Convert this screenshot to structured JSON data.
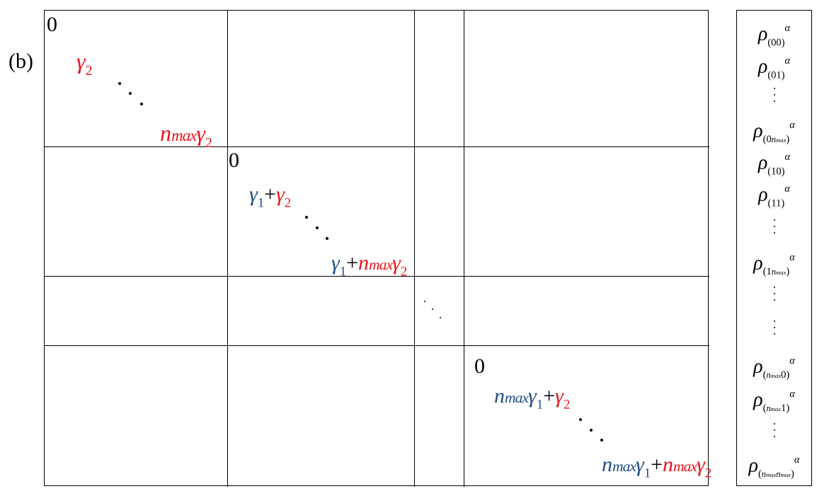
{
  "panel_label": "(b)",
  "blocks": [
    {
      "zero": "0",
      "first": "γ2",
      "last": "nmaxγ2"
    },
    {
      "zero": "0",
      "first": "γ1+γ2",
      "last": "γ1+nmaxγ2"
    },
    {
      "zero": "0",
      "first": "nmaxγ1+γ2",
      "last": "nmaxγ1+nmaxγ2"
    }
  ],
  "vector": {
    "entries": [
      "ρ(00)α",
      "ρ(01)α",
      "⋮",
      "ρ(0nmax)α",
      "ρ(10)α",
      "ρ(11)α",
      "⋮",
      "ρ(1nmax)α",
      "⋮",
      "⋮",
      "ρ(nmax0)α",
      "ρ(nmax1)α",
      "⋮",
      "ρ(nmaxnmax)α"
    ]
  },
  "colors": {
    "gamma1": "#1e4d85",
    "gamma2": "#e8141b",
    "lines": "#000000"
  }
}
